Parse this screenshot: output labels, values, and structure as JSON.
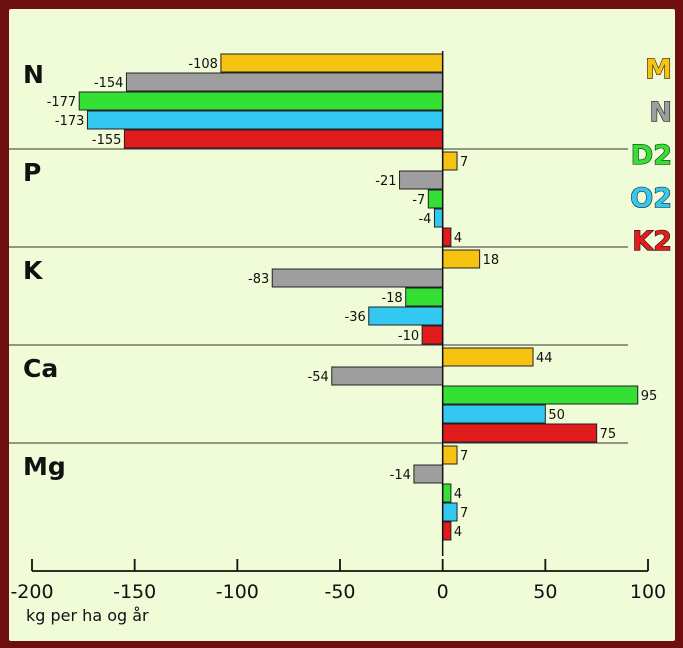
{
  "chart_data": {
    "type": "bar",
    "orientation": "horizontal",
    "xlabel": "kg per ha og år",
    "xlim": [
      -200,
      100
    ],
    "xticks": [
      "-200",
      "-150",
      "-100",
      "-50",
      "0",
      "50",
      "100"
    ],
    "groups": [
      "N",
      "P",
      "K",
      "Ca",
      "Mg"
    ],
    "series": [
      {
        "name": "M",
        "color": "#f7c312",
        "values": [
          -108,
          7,
          18,
          44,
          7
        ]
      },
      {
        "name": "N",
        "color": "#9e9e9e",
        "values": [
          -154,
          -21,
          -83,
          -54,
          -14
        ]
      },
      {
        "name": "D2",
        "color": "#33e033",
        "values": [
          -177,
          -7,
          -18,
          95,
          4
        ]
      },
      {
        "name": "O2",
        "color": "#33c8f0",
        "values": [
          -173,
          -4,
          -36,
          50,
          7
        ]
      },
      {
        "name": "K2",
        "color": "#e01c1c",
        "values": [
          -155,
          4,
          -10,
          75,
          4
        ]
      }
    ],
    "legend_position": "right",
    "grid": false
  }
}
